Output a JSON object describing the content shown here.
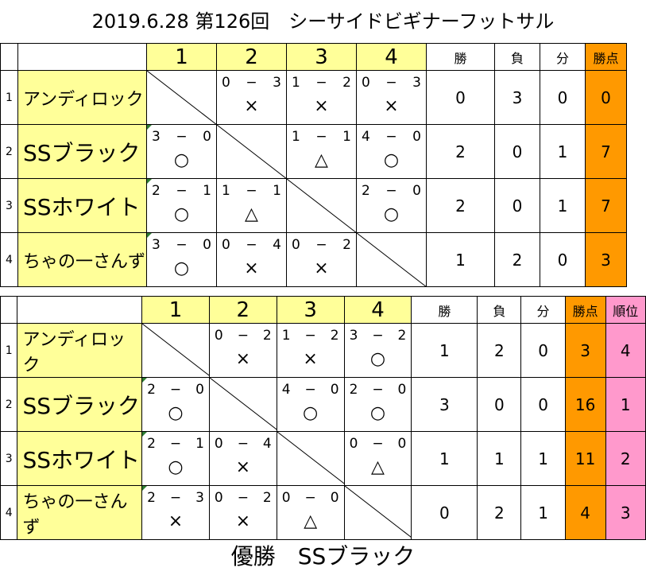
{
  "title": "2019.6.28 第126回　シーサイドビギナーフットサル",
  "footer": "優勝　SSブラック",
  "table1": {
    "headers": [
      "1",
      "2",
      "3",
      "4"
    ],
    "stat_headers": [
      "勝",
      "負",
      "分",
      "勝点"
    ],
    "rows": [
      {
        "num": "1",
        "team": "アンディロック",
        "cells": [
          null,
          {
            "a": "0",
            "dash": "−",
            "b": "3",
            "mark": "×"
          },
          {
            "a": "1",
            "dash": "−",
            "b": "2",
            "mark": "×"
          },
          {
            "a": "0",
            "dash": "−",
            "b": "3",
            "mark": "×"
          }
        ],
        "win": "0",
        "lose": "3",
        "draw": "0",
        "pts": "0"
      },
      {
        "num": "2",
        "team": "SSブラック",
        "cells": [
          {
            "a": "3",
            "dash": "−",
            "b": "0",
            "mark": "○"
          },
          null,
          {
            "a": "1",
            "dash": "−",
            "b": "1",
            "mark": "△"
          },
          {
            "a": "4",
            "dash": "−",
            "b": "0",
            "mark": "○"
          }
        ],
        "win": "2",
        "lose": "0",
        "draw": "1",
        "pts": "7"
      },
      {
        "num": "3",
        "team": "SSホワイト",
        "cells": [
          {
            "a": "2",
            "dash": "−",
            "b": "1",
            "mark": "○"
          },
          {
            "a": "1",
            "dash": "−",
            "b": "1",
            "mark": "△"
          },
          null,
          {
            "a": "2",
            "dash": "−",
            "b": "0",
            "mark": "○"
          }
        ],
        "win": "2",
        "lose": "0",
        "draw": "1",
        "pts": "7"
      },
      {
        "num": "4",
        "team": "ちゃの一さんず",
        "cells": [
          {
            "a": "3",
            "dash": "−",
            "b": "0",
            "mark": "○"
          },
          {
            "a": "0",
            "dash": "−",
            "b": "4",
            "mark": "×"
          },
          {
            "a": "0",
            "dash": "−",
            "b": "2",
            "mark": "×"
          },
          null
        ],
        "win": "1",
        "lose": "2",
        "draw": "0",
        "pts": "3"
      }
    ]
  },
  "table2": {
    "headers": [
      "1",
      "2",
      "3",
      "4"
    ],
    "stat_headers": [
      "勝",
      "負",
      "分",
      "勝点",
      "順位"
    ],
    "rows": [
      {
        "num": "1",
        "team": "アンディロック",
        "cells": [
          null,
          {
            "a": "0",
            "dash": "−",
            "b": "2",
            "mark": "×"
          },
          {
            "a": "1",
            "dash": "−",
            "b": "2",
            "mark": "×"
          },
          {
            "a": "3",
            "dash": "−",
            "b": "2",
            "mark": "○"
          }
        ],
        "win": "1",
        "lose": "2",
        "draw": "0",
        "pts": "3",
        "rank": "4"
      },
      {
        "num": "2",
        "team": "SSブラック",
        "cells": [
          {
            "a": "2",
            "dash": "−",
            "b": "0",
            "mark": "○"
          },
          null,
          {
            "a": "4",
            "dash": "−",
            "b": "0",
            "mark": "○"
          },
          {
            "a": "2",
            "dash": "−",
            "b": "0",
            "mark": "○"
          }
        ],
        "win": "3",
        "lose": "0",
        "draw": "0",
        "pts": "16",
        "rank": "1"
      },
      {
        "num": "3",
        "team": "SSホワイト",
        "cells": [
          {
            "a": "2",
            "dash": "−",
            "b": "1",
            "mark": "○"
          },
          {
            "a": "0",
            "dash": "−",
            "b": "4",
            "mark": "×"
          },
          null,
          {
            "a": "0",
            "dash": "−",
            "b": "0",
            "mark": "△"
          }
        ],
        "win": "1",
        "lose": "1",
        "draw": "1",
        "pts": "11",
        "rank": "2"
      },
      {
        "num": "4",
        "team": "ちゃの一さんず",
        "cells": [
          {
            "a": "2",
            "dash": "−",
            "b": "3",
            "mark": "×"
          },
          {
            "a": "0",
            "dash": "−",
            "b": "2",
            "mark": "×"
          },
          {
            "a": "0",
            "dash": "−",
            "b": "0",
            "mark": "△"
          },
          null
        ],
        "win": "0",
        "lose": "2",
        "draw": "1",
        "pts": "4",
        "rank": "3"
      }
    ]
  }
}
